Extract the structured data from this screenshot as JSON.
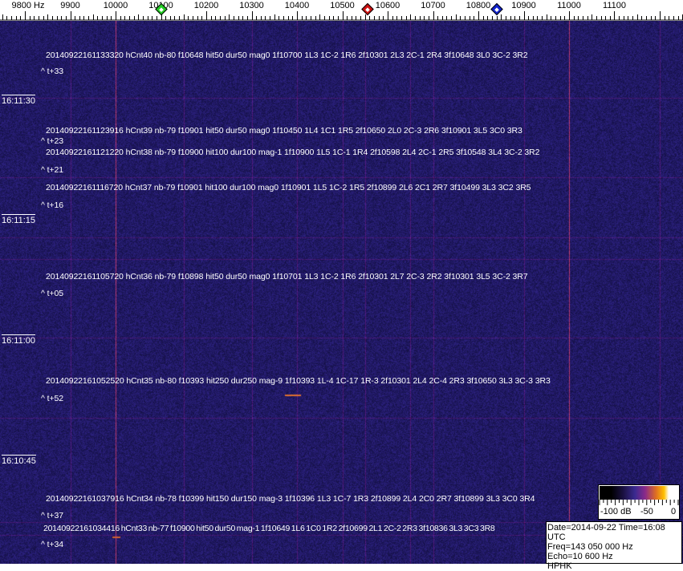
{
  "axis": {
    "unit_label": "9800 Hz",
    "ticks": [
      "9900",
      "10000",
      "10100",
      "10200",
      "10300",
      "10400",
      "10500",
      "10600",
      "10700",
      "10800",
      "10900",
      "11000",
      "11100"
    ],
    "markers": [
      {
        "name": "green-marker",
        "freq": 10100,
        "color": "#22cc22"
      },
      {
        "name": "red-marker",
        "freq": 10556,
        "color": "#cc1111"
      },
      {
        "name": "blue-marker",
        "freq": 10840,
        "color": "#1122cc"
      }
    ]
  },
  "spectrogram": {
    "background_color": "#1c1660",
    "carrier_freqs": [
      10000,
      11000
    ]
  },
  "time_labels": [
    "16:11:30",
    "16:11:15",
    "16:11:00",
    "16:10:45"
  ],
  "detections": [
    {
      "line": "20140922161133320 hCnt40 nb-80 f10648 hit50 dur50 mag0 1f10700 1L3 1C-2 1R6 2f10301 2L3 2C-1 2R4 3f10648 3L0 3C-2 3R2",
      "delta": "^ t+33"
    },
    {
      "line": "20140922161123916 hCnt39 nb-79 f10901 hit50 dur50 mag0 1f10450 1L4 1C1 1R5 2f10650 2L0 2C-3 2R6 3f10901 3L5 3C0 3R3",
      "delta": "^ t+23"
    },
    {
      "line": "20140922161121220 hCnt38 nb-79 f10900 hit100 dur100 mag-1 1f10900 1L5 1C-1 1R4 2f10598 2L4 2C-1 2R5 3f10548 3L4 3C-2 3R2",
      "delta": "^ t+21"
    },
    {
      "line": "20140922161116720 hCnt37 nb-79 f10901 hit100 dur100 mag0 1f10901 1L5 1C-2 1R5 2f10899 2L6 2C1 2R7 3f10499 3L3 3C2 3R5",
      "delta": "^ t+16"
    },
    {
      "line": "20140922161105720 hCnt36 nb-79 f10898 hit50 dur50 mag0 1f10701 1L3 1C-2 1R6 2f10301 2L7 2C-3 2R2 3f10301 3L5 3C-2 3R7",
      "delta": "^ t+05"
    },
    {
      "line": "20140922161052520 hCnt35 nb-80 f10393 hit250 dur250 mag-9 1f10393 1L-4 1C-17 1R-3 2f10301 2L4 2C-4 2R3 3f10650 3L3 3C-3 3R3",
      "delta": "^ t+52"
    },
    {
      "line": "20140922161037916 hCnt34 nb-78 f10399 hit150 dur150 mag-3 1f10396 1L3 1C-7 1R3 2f10899 2L4 2C0 2R7 3f10899 3L3 3C0 3R4",
      "delta": "^ t+37"
    },
    {
      "line": "20140922161034416 hCnt33 nb-77 f10900 hit50 dur50 mag-1 1f10649 1L6 1C0 1R2 2f10699 2L1 2C-2 2R3 3f10836 3L3 3C3 3R8",
      "delta": "^ t+34"
    }
  ],
  "color_scale": {
    "labels": [
      "-100 dB",
      "-50",
      "0"
    ]
  },
  "info": {
    "date_time": "Date=2014-09-22 Time=16:08 UTC",
    "freq": "Freq=143 050 000 Hz",
    "echo": "Echo=10 600 Hz",
    "station": "HPHK"
  }
}
